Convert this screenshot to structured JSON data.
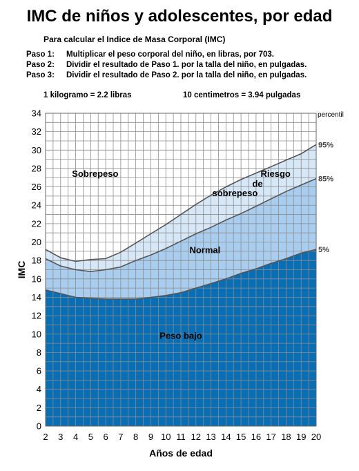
{
  "title": "IMC de niños y adolescentes, por edad",
  "subtitle": "Para calcular el Indice de Masa Corporal (IMC)",
  "steps": [
    {
      "label": "Paso 1:",
      "text": "Multiplicar el peso corporal del niño, en libras, por 703."
    },
    {
      "label": "Paso 2:",
      "text": "Dividir el resultado de Paso 1. por la talla del niño, en pulgadas."
    },
    {
      "label": "Paso 3:",
      "text": "Dividir el resultado de Paso 2. por la talla del niño, en pulgadas."
    }
  ],
  "conversions": {
    "weight": "1 kilogramo = 2.2 libras",
    "length": "10 centimetros = 3.94 pulgadas"
  },
  "colors": {
    "underweight": "#0a6eb4",
    "normal": "#a9cdef",
    "at_risk": "#d6e8f7",
    "overweight": "#ffffff",
    "grid": "#8c8c8c",
    "curve": "#555555"
  },
  "chart_data": {
    "type": "area",
    "xlabel": "Años de edad",
    "ylabel": "IMC",
    "xlim": [
      2,
      20
    ],
    "ylim": [
      0,
      34
    ],
    "x_ticks": [
      2,
      3,
      4,
      5,
      6,
      7,
      8,
      9,
      10,
      11,
      12,
      13,
      14,
      15,
      16,
      17,
      18,
      19,
      20
    ],
    "y_ticks": [
      0,
      2,
      4,
      6,
      8,
      10,
      12,
      14,
      16,
      18,
      20,
      22,
      24,
      26,
      28,
      30,
      32,
      34
    ],
    "percentile_header": "percentil",
    "x": [
      2,
      3,
      4,
      5,
      6,
      7,
      8,
      9,
      10,
      11,
      12,
      13,
      14,
      15,
      16,
      17,
      18,
      19,
      20
    ],
    "series": [
      {
        "name": "5%",
        "values": [
          14.8,
          14.4,
          14.0,
          13.9,
          13.8,
          13.8,
          13.8,
          14.0,
          14.2,
          14.5,
          15.0,
          15.5,
          16.0,
          16.6,
          17.1,
          17.7,
          18.2,
          18.8,
          19.2
        ]
      },
      {
        "name": "85%",
        "values": [
          18.2,
          17.4,
          17.0,
          16.8,
          17.0,
          17.3,
          18.0,
          18.6,
          19.3,
          20.1,
          20.9,
          21.6,
          22.4,
          23.1,
          23.9,
          24.7,
          25.5,
          26.2,
          26.9
        ]
      },
      {
        "name": "95%",
        "values": [
          19.2,
          18.3,
          17.9,
          18.1,
          18.2,
          18.9,
          19.9,
          20.9,
          21.9,
          23.0,
          24.1,
          25.1,
          26.0,
          26.8,
          27.5,
          28.2,
          28.9,
          29.6,
          30.6
        ]
      }
    ],
    "zone_labels": {
      "overweight": "Sobrepeso",
      "at_risk": [
        "Riesgo",
        "de",
        "sobrepeso"
      ],
      "normal": "Normal",
      "underweight": "Peso bajo"
    }
  }
}
